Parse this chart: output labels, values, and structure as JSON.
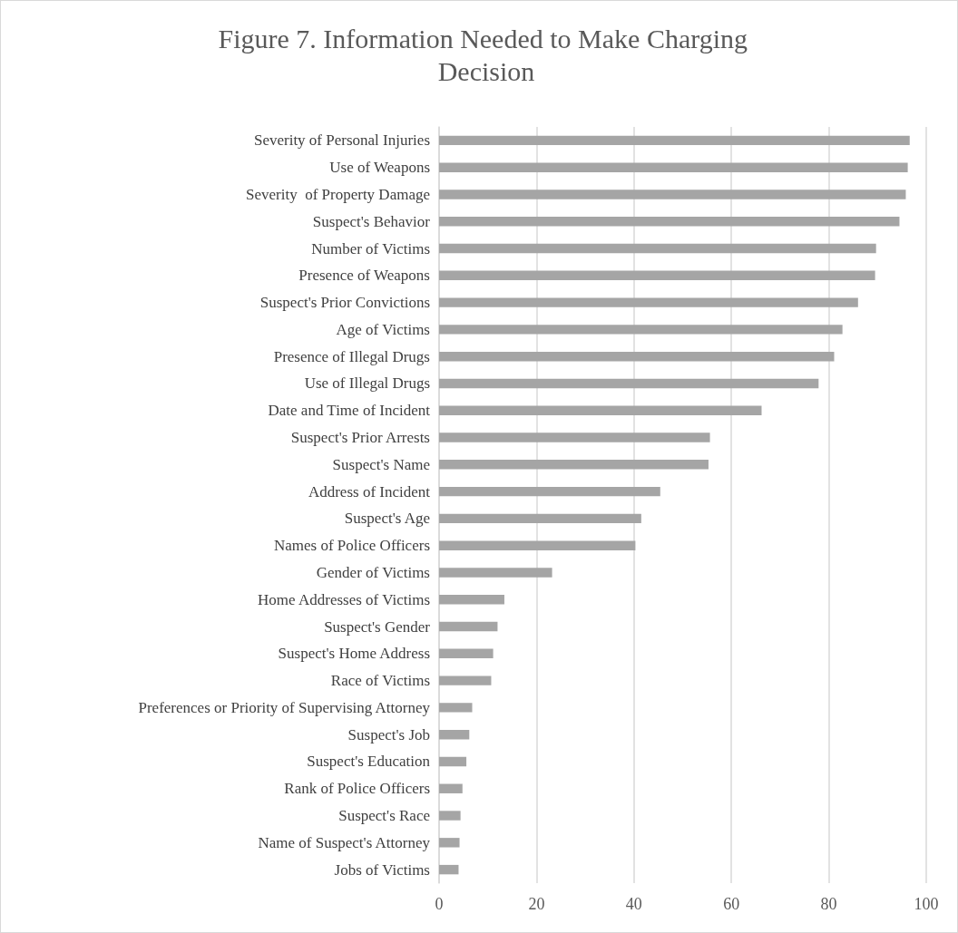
{
  "chart_data": {
    "type": "bar",
    "orientation": "horizontal",
    "title": "Figure 7. Information Needed to Make Charging Decision",
    "categories": [
      "Severity of Personal Injuries",
      "Use of Weapons",
      "Severity  of Property Damage",
      "Suspect's Behavior",
      "Number of Victims",
      "Presence of Weapons",
      "Suspect's Prior Convictions",
      "Age of Victims",
      "Presence of Illegal Drugs",
      "Use of Illegal Drugs",
      "Date and Time of Incident",
      "Suspect's Prior Arrests",
      "Suspect's Name",
      "Address of Incident",
      "Suspect's Age",
      "Names of Police Officers",
      "Gender of Victims",
      "Home Addresses of Victims",
      "Suspect's Gender",
      "Suspect's Home Address",
      "Race of Victims",
      "Preferences or Priority of Supervising Attorney",
      "Suspect's Job",
      "Suspect's Education",
      "Rank of Police Officers",
      "Suspect's Race",
      "Name of Suspect's Attorney",
      "Jobs of Victims"
    ],
    "values": [
      96.6,
      96.2,
      95.8,
      94.5,
      89.7,
      89.5,
      86.0,
      82.8,
      81.1,
      77.9,
      66.2,
      55.6,
      55.3,
      45.4,
      41.5,
      40.3,
      23.2,
      13.4,
      12.0,
      11.1,
      10.7,
      6.8,
      6.2,
      5.6,
      4.8,
      4.4,
      4.2,
      4.0
    ],
    "color": "#a5a5a5",
    "xlim": [
      0,
      100
    ],
    "xticks": [
      0,
      20,
      40,
      60,
      80,
      100
    ],
    "grid": "x"
  }
}
